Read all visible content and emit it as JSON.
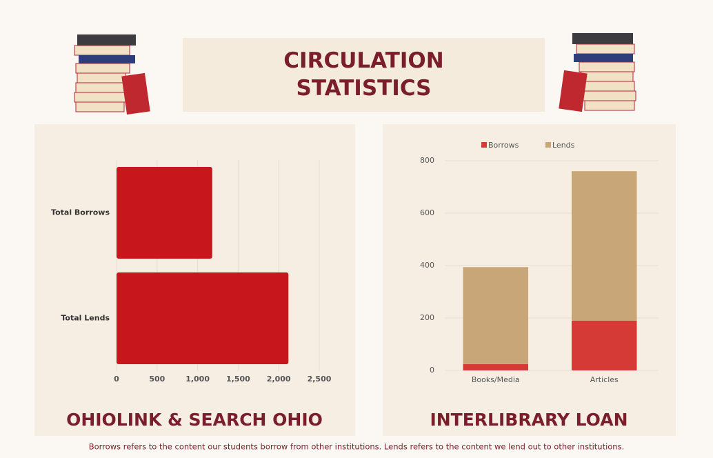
{
  "title": "CIRCULATION STATISTICS",
  "footnote": "Borrows refers to the content our students borrow from other institutions. Lends refers to the content we lend out to other institutions.",
  "chart_data": [
    {
      "type": "horizontal_bar",
      "title": "OHIOLINK & SEARCH OHIO",
      "categories": [
        "Total Borrows",
        "Total Lends"
      ],
      "values": [
        1180,
        2120
      ],
      "color": "#c8161d",
      "xlim": [
        0,
        2500
      ],
      "xticks": [
        0,
        500,
        {
          "value": 1000,
          "label": "1,000"
        },
        {
          "value": 1500,
          "label": "1,500"
        },
        {
          "value": 2000,
          "label": "2,000"
        },
        {
          "value": 2500,
          "label": "2,500"
        }
      ],
      "grid": true
    },
    {
      "type": "stacked_bar",
      "title": "INTERLIBRARY LOAN",
      "categories": [
        "Books/Media",
        "Articles"
      ],
      "series": [
        {
          "name": "Borrows",
          "color": "#d63a36",
          "values": [
            24,
            190
          ]
        },
        {
          "name": "Lends",
          "color": "#c9a677",
          "values": [
            370,
            570
          ]
        }
      ],
      "ylim": [
        0,
        800
      ],
      "yticks": [
        0,
        200,
        400,
        600,
        800
      ],
      "grid": true,
      "legend": "top"
    }
  ]
}
